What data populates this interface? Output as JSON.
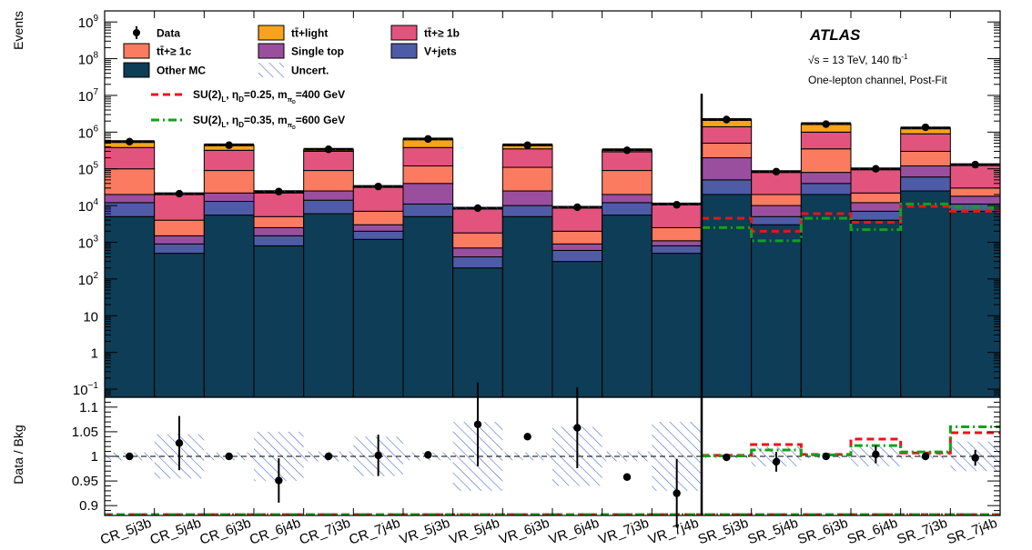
{
  "chart_data": [
    {
      "type": "bar",
      "stacked": true,
      "log_scale": true,
      "ylabel": "Events",
      "ylim": [
        0.06,
        2000000000
      ],
      "y_ticks": [
        {
          "v": 0.1,
          "base": "10",
          "sup": "−1"
        },
        {
          "v": 1,
          "base": "1",
          "sup": ""
        },
        {
          "v": 10,
          "base": "10",
          "sup": ""
        },
        {
          "v": 100,
          "base": "10",
          "sup": "2"
        },
        {
          "v": 1000,
          "base": "10",
          "sup": "3"
        },
        {
          "v": 10000,
          "base": "10",
          "sup": "4"
        },
        {
          "v": 100000,
          "base": "10",
          "sup": "5"
        },
        {
          "v": 1000000,
          "base": "10",
          "sup": "6"
        },
        {
          "v": 10000000,
          "base": "10",
          "sup": "7"
        },
        {
          "v": 100000000,
          "base": "10",
          "sup": "8"
        },
        {
          "v": 1000000000,
          "base": "10",
          "sup": "9"
        }
      ],
      "categories": [
        "CR_5j3b",
        "CR_5j4b",
        "CR_6j3b",
        "CR_6j4b",
        "CR_7j3b",
        "CR_7j4b",
        "VR_5j3b",
        "VR_5j4b",
        "VR_6j3b",
        "VR_6j4b",
        "VR_7j3b",
        "VR_7j4b",
        "SR_5j3b",
        "SR_5j4b",
        "SR_6j3b",
        "SR_6j4b",
        "SR_7j3b",
        "SR_7j4b"
      ],
      "stack_cumulative_boundaries": true,
      "series": [
        {
          "name": "Other MC",
          "key": "other",
          "color": "#0e3d57",
          "values": [
            5000,
            500,
            5500,
            800,
            6000,
            1200,
            5000,
            200,
            5000,
            300,
            5500,
            500,
            20000,
            3000,
            20000,
            4000,
            25000,
            7000
          ]
        },
        {
          "name": "V+jets",
          "key": "vjets",
          "color": "#4e5ba6",
          "values": [
            12000,
            900,
            13000,
            1500,
            14000,
            2000,
            11000,
            400,
            10000,
            600,
            12000,
            800,
            50000,
            5000,
            40000,
            7000,
            60000,
            11000
          ]
        },
        {
          "name": "Single top",
          "key": "singletop",
          "color": "#9a4f9e",
          "values": [
            20000,
            1500,
            22000,
            2500,
            25000,
            3000,
            40000,
            700,
            25000,
            900,
            20000,
            1100,
            200000,
            10000,
            80000,
            12000,
            120000,
            18000
          ]
        },
        {
          "name": "tt̄+≥ 1c",
          "key": "ttc",
          "color": "#fb7b60",
          "values": [
            100000,
            4000,
            90000,
            5000,
            90000,
            7000,
            120000,
            1800,
            110000,
            2000,
            90000,
            2500,
            500000,
            20000,
            350000,
            22000,
            300000,
            30000
          ]
        },
        {
          "name": "tt̄+≥ 1b",
          "key": "ttb",
          "color": "#e2547d",
          "values": [
            380000,
            20000,
            320000,
            22000,
            300000,
            32000,
            380000,
            8000,
            350000,
            8500,
            290000,
            10500,
            1400000,
            80000,
            1000000,
            95000,
            900000,
            125000
          ]
        },
        {
          "name": "tt̄+light",
          "key": "ttlight",
          "color": "#f8a31b",
          "values": [
            550000,
            21000,
            450000,
            24000,
            340000,
            33000,
            650000,
            8500,
            450000,
            9000,
            330000,
            11000,
            2200000,
            84000,
            1700000,
            100000,
            1300000,
            130000
          ]
        }
      ],
      "data": {
        "name": "Data",
        "values": [
          550000,
          21000,
          440000,
          24000,
          340000,
          33000,
          650000,
          8500,
          440000,
          9000,
          320000,
          10500,
          2200000,
          84000,
          1650000,
          100000,
          1350000,
          130000
        ]
      },
      "signals": [
        {
          "name": "SU(2)L, ηD=0.25, mπD=400 GeV",
          "color": "#e8141c",
          "style": "dashed",
          "values": [
            null,
            null,
            null,
            null,
            null,
            null,
            null,
            null,
            null,
            null,
            null,
            null,
            4500,
            2000,
            6000,
            3500,
            9500,
            7000
          ]
        },
        {
          "name": "SU(2)L, ηD=0.35, mπD=600 GeV",
          "color": "#12a11c",
          "style": "dashdot",
          "values": [
            null,
            null,
            null,
            null,
            null,
            null,
            null,
            null,
            null,
            null,
            null,
            null,
            2500,
            1100,
            4500,
            2200,
            11000,
            9000
          ]
        }
      ],
      "legend": {
        "placement": "top-left",
        "items": [
          {
            "label": "Data",
            "kind": "point",
            "color": "#000000"
          },
          {
            "label": "tt̄+light",
            "kind": "box",
            "color": "#f8a31b"
          },
          {
            "label": "tt̄+≥ 1b",
            "kind": "box",
            "color": "#e2547d"
          },
          {
            "label": "tt̄+≥ 1c",
            "kind": "box",
            "color": "#fb7b60"
          },
          {
            "label": "Single top",
            "kind": "box",
            "color": "#9a4f9e"
          },
          {
            "label": "V+jets",
            "kind": "box",
            "color": "#4e5ba6"
          },
          {
            "label": "Other MC",
            "kind": "box",
            "color": "#0e3d57"
          },
          {
            "label": "Uncert.",
            "kind": "hatch",
            "color": "#3a5fd0"
          }
        ],
        "signal_items": [
          {
            "pre": "SU(2)",
            "sub1": "L",
            "mid1": ",  η",
            "sub2": "D",
            "mid2": "=0.25, m",
            "sub3": "π",
            "subsub": "D",
            "post": "=400 GeV",
            "color": "#e8141c"
          },
          {
            "pre": "SU(2)",
            "sub1": "L",
            "mid1": ",  η",
            "sub2": "D",
            "mid2": "=0.35, m",
            "sub3": "π",
            "subsub": "D",
            "post": "=600 GeV",
            "color": "#12a11c"
          }
        ]
      },
      "annotations": {
        "experiment": "ATLAS",
        "energy": "√s = 13 TeV, 140 fb",
        "energy_sup": "-1",
        "channel": "One-lepton channel, Post-Fit"
      }
    },
    {
      "type": "scatter",
      "ylabel": "Data / Bkg",
      "ylim": [
        0.88,
        1.12
      ],
      "y_ticks": [
        0.9,
        0.95,
        1,
        1.05,
        1.1
      ],
      "y_tick_labels": [
        "0.9",
        "0.95",
        "1",
        "1.05",
        "1.1"
      ],
      "reference_line": 1,
      "categories": [
        "CR_5j3b",
        "CR_5j4b",
        "CR_6j3b",
        "CR_6j4b",
        "CR_7j3b",
        "CR_7j4b",
        "VR_5j3b",
        "VR_5j4b",
        "VR_6j3b",
        "VR_6j4b",
        "VR_7j3b",
        "VR_7j4b",
        "SR_5j3b",
        "SR_5j4b",
        "SR_6j3b",
        "SR_6j4b",
        "SR_7j3b",
        "SR_7j4b"
      ],
      "ratio": [
        1.0,
        1.027,
        1.0,
        0.951,
        1.0,
        1.002,
        1.003,
        1.065,
        1.04,
        1.058,
        0.958,
        0.925,
        0.998,
        0.989,
        1.0,
        1.004,
        1.0,
        0.997
      ],
      "ratio_err": [
        0.004,
        0.055,
        0.004,
        0.045,
        0.006,
        0.042,
        0.005,
        0.085,
        0.006,
        0.082,
        0.005,
        0.07,
        0.003,
        0.02,
        0.003,
        0.018,
        0.003,
        0.016
      ],
      "uncert_band": [
        0.008,
        0.045,
        0.008,
        0.05,
        0.01,
        0.04,
        0.008,
        0.07,
        0.008,
        0.06,
        0.01,
        0.07,
        0.004,
        0.02,
        0.004,
        0.02,
        0.005,
        0.03
      ],
      "signal_ratio": [
        {
          "color": "#e8141c",
          "values": [
            null,
            null,
            null,
            null,
            null,
            null,
            null,
            null,
            null,
            null,
            null,
            null,
            1.002,
            1.024,
            1.004,
            1.035,
            1.007,
            1.048
          ]
        },
        {
          "color": "#12a11c",
          "values": [
            null,
            null,
            null,
            null,
            null,
            null,
            null,
            null,
            null,
            null,
            null,
            null,
            1.001,
            1.013,
            1.003,
            1.022,
            1.009,
            1.06
          ]
        }
      ]
    }
  ]
}
